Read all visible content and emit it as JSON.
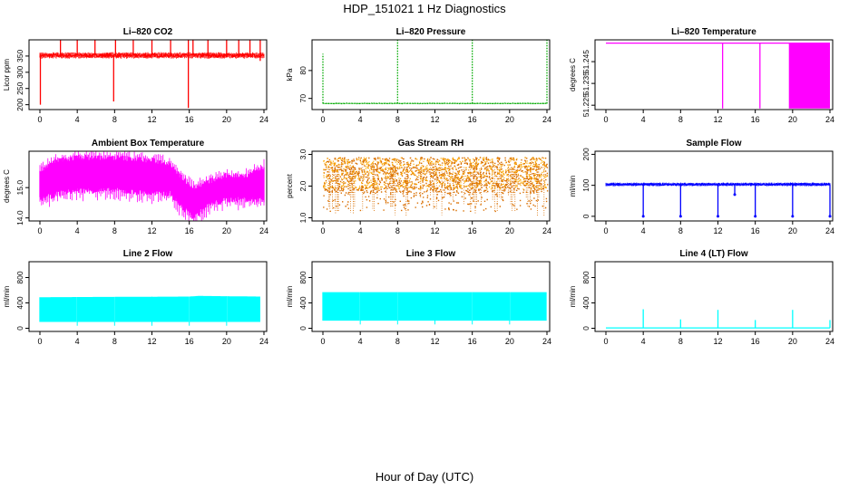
{
  "figure": {
    "title": "HDP_151021  1 Hz Diagnostics",
    "xlabel": "Hour of Day (UTC)"
  },
  "chart_data": [
    {
      "type": "line",
      "title": "Li–820 CO2",
      "ylabel": "Licor ppm",
      "color": "#ff0000",
      "xlim": [
        0,
        24
      ],
      "ylim": [
        185,
        400
      ],
      "xticks": [
        0,
        4,
        8,
        12,
        16,
        20,
        24
      ],
      "yticks": [
        200,
        250,
        300,
        350
      ],
      "style": "line",
      "series": {
        "baseline": 352,
        "noise": 5
      },
      "spikes": [
        {
          "x": 0.05,
          "lo": 200,
          "hi": 352
        },
        {
          "x": 2.2,
          "lo": 352,
          "hi": 400
        },
        {
          "x": 4.0,
          "lo": 352,
          "hi": 400
        },
        {
          "x": 5.9,
          "lo": 352,
          "hi": 400
        },
        {
          "x": 7.9,
          "lo": 210,
          "hi": 352
        },
        {
          "x": 8.1,
          "lo": 352,
          "hi": 400
        },
        {
          "x": 10.0,
          "lo": 352,
          "hi": 400
        },
        {
          "x": 12.0,
          "lo": 352,
          "hi": 400
        },
        {
          "x": 14.0,
          "lo": 352,
          "hi": 400
        },
        {
          "x": 15.9,
          "lo": 190,
          "hi": 400
        },
        {
          "x": 16.4,
          "lo": 352,
          "hi": 400
        },
        {
          "x": 18.0,
          "lo": 352,
          "hi": 400
        },
        {
          "x": 20.0,
          "lo": 352,
          "hi": 400
        },
        {
          "x": 21.3,
          "lo": 352,
          "hi": 400
        },
        {
          "x": 22.5,
          "lo": 352,
          "hi": 400
        },
        {
          "x": 23.6,
          "lo": 335,
          "hi": 400
        }
      ]
    },
    {
      "type": "line",
      "title": "Li–820 Pressure",
      "ylabel": "kPa",
      "color": "#00aa00",
      "xlim": [
        0,
        24
      ],
      "ylim": [
        66,
        91
      ],
      "xticks": [
        0,
        4,
        8,
        12,
        16,
        20,
        24
      ],
      "yticks": [
        70,
        80
      ],
      "style": "dotted",
      "series": {
        "baseline": 68.2,
        "noise": 0.1
      },
      "spikes": [
        {
          "x": 0.0,
          "lo": 68.2,
          "hi": 86
        },
        {
          "x": 8.0,
          "lo": 68.2,
          "hi": 91
        },
        {
          "x": 16.0,
          "lo": 68.2,
          "hi": 91
        },
        {
          "x": 24.0,
          "lo": 68.2,
          "hi": 91
        }
      ]
    },
    {
      "type": "line",
      "title": "Li–820 Temperature",
      "ylabel": "degrees C",
      "color": "#ff00ff",
      "xlim": [
        0,
        24
      ],
      "ylim": [
        51.223,
        51.255
      ],
      "xticks": [
        0,
        4,
        8,
        12,
        16,
        20,
        24
      ],
      "yticks": [
        51.225,
        51.235,
        51.245
      ],
      "ytick_labels": [
        "51.225",
        "51.235",
        "51.245"
      ],
      "style": "line",
      "series": {
        "baseline": 51.2535,
        "noise": 0
      },
      "spikes": [
        {
          "x": 12.5,
          "lo": 51.2235,
          "hi": 51.2535
        },
        {
          "x": 16.5,
          "lo": 51.2235,
          "hi": 51.2535
        }
      ],
      "band": {
        "x0": 19.6,
        "x1": 24.0,
        "lo": 51.2235,
        "hi": 51.2535
      }
    },
    {
      "type": "line",
      "title": "Ambient Box Temperature",
      "ylabel": "degrees C",
      "color": "#ff00ff",
      "xlim": [
        0,
        24
      ],
      "ylim": [
        13.9,
        16.2
      ],
      "xticks": [
        0,
        4,
        8,
        12,
        16,
        20,
        24
      ],
      "yticks": [
        14.0,
        15.0
      ],
      "ytick_labels": [
        "14.0",
        "15.0"
      ],
      "style": "band",
      "profile": [
        [
          0,
          14.6,
          15.6
        ],
        [
          2,
          14.8,
          15.9
        ],
        [
          4,
          14.9,
          16.0
        ],
        [
          8,
          14.9,
          16.0
        ],
        [
          12,
          14.8,
          15.9
        ],
        [
          14,
          14.8,
          15.8
        ],
        [
          15,
          14.4,
          15.4
        ],
        [
          16.5,
          14.0,
          15.0
        ],
        [
          18,
          14.4,
          15.2
        ],
        [
          20,
          14.6,
          15.4
        ],
        [
          22,
          14.6,
          15.4
        ],
        [
          24,
          14.6,
          15.7
        ]
      ]
    },
    {
      "type": "scatter",
      "title": "Gas Stream RH",
      "ylabel": "percent",
      "color": "#ffaa00",
      "color2": "#d96f00",
      "xlim": [
        0,
        24
      ],
      "ylim": [
        0.9,
        3.1
      ],
      "xticks": [
        0,
        4,
        8,
        12,
        16,
        20,
        24
      ],
      "yticks": [
        1.0,
        2.0,
        3.0
      ],
      "ytick_labels": [
        "1.0",
        "2.0",
        "3.0"
      ],
      "style": "points",
      "profile": [
        [
          0,
          1.2,
          2.9
        ],
        [
          24,
          1.2,
          2.9
        ]
      ]
    },
    {
      "type": "line",
      "title": "Sample Flow",
      "ylabel": "ml/min",
      "color": "#0000ff",
      "xlim": [
        0,
        24
      ],
      "ylim": [
        -15,
        210
      ],
      "xticks": [
        0,
        4,
        8,
        12,
        16,
        20,
        24
      ],
      "yticks": [
        0,
        100,
        200
      ],
      "style": "line",
      "series": {
        "baseline": 103,
        "noise": 3
      },
      "spikes": [
        {
          "x": 4.0,
          "lo": 0,
          "hi": 103
        },
        {
          "x": 8.0,
          "lo": 0,
          "hi": 103
        },
        {
          "x": 12.0,
          "lo": 0,
          "hi": 103
        },
        {
          "x": 16.0,
          "lo": 0,
          "hi": 103
        },
        {
          "x": 20.0,
          "lo": 0,
          "hi": 103
        },
        {
          "x": 24.0,
          "lo": 0,
          "hi": 103
        },
        {
          "x": 13.8,
          "lo": 70,
          "hi": 103
        }
      ]
    },
    {
      "type": "line",
      "title": "Line 2 Flow",
      "ylabel": "ml/min",
      "color": "#00ffff",
      "xlim": [
        0,
        24
      ],
      "ylim": [
        -50,
        1050
      ],
      "xticks": [
        0,
        4,
        8,
        12,
        16,
        20,
        24
      ],
      "yticks": [
        0,
        400,
        800
      ],
      "style": "band",
      "profile": [
        [
          0,
          100,
          490
        ],
        [
          16,
          100,
          500
        ],
        [
          17,
          100,
          510
        ],
        [
          23.6,
          100,
          500
        ]
      ],
      "gaps": [
        4.0,
        8.0,
        12.0,
        16.0,
        20.0,
        24.0
      ]
    },
    {
      "type": "line",
      "title": "Line 3 Flow",
      "ylabel": "ml/min",
      "color": "#00ffff",
      "xlim": [
        0,
        24
      ],
      "ylim": [
        -50,
        1050
      ],
      "xticks": [
        0,
        4,
        8,
        12,
        16,
        20,
        24
      ],
      "yticks": [
        0,
        400,
        800
      ],
      "style": "band",
      "profile": [
        [
          0,
          120,
          570
        ],
        [
          24,
          120,
          570
        ]
      ],
      "gaps": [
        4.0,
        8.0,
        12.0,
        16.0,
        20.0,
        24.0
      ]
    },
    {
      "type": "line",
      "title": "Line 4 (LT) Flow",
      "ylabel": "ml/min",
      "color": "#00ffff",
      "xlim": [
        0,
        24
      ],
      "ylim": [
        -50,
        1050
      ],
      "xticks": [
        0,
        4,
        8,
        12,
        16,
        20,
        24
      ],
      "yticks": [
        0,
        400,
        800
      ],
      "style": "line",
      "series": {
        "baseline": 5,
        "noise": 0
      },
      "spikes": [
        {
          "x": 4.0,
          "lo": 5,
          "hi": 300
        },
        {
          "x": 8.0,
          "lo": 5,
          "hi": 140
        },
        {
          "x": 12.0,
          "lo": 5,
          "hi": 290
        },
        {
          "x": 16.0,
          "lo": 5,
          "hi": 130
        },
        {
          "x": 20.0,
          "lo": 5,
          "hi": 290
        },
        {
          "x": 24.0,
          "lo": 5,
          "hi": 130
        }
      ]
    }
  ]
}
